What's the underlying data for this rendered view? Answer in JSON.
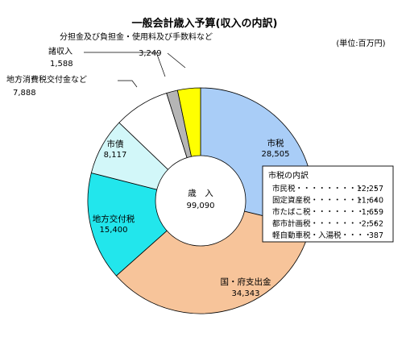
{
  "chart_data": {
    "type": "pie",
    "title": "一般会計歳入予算(収入の内訳)",
    "unit_note": "(単位:百万円)",
    "center": {
      "label": "歳　入",
      "value": "99,090"
    },
    "slices": [
      {
        "name": "市税",
        "value": 28505,
        "display": "28,505",
        "color": "#a9cdf7"
      },
      {
        "name": "国・府支出金",
        "value": 34343,
        "display": "34,343",
        "color": "#f7c49a"
      },
      {
        "name": "地方交付税",
        "value": 15400,
        "display": "15,400",
        "color": "#22e6ec"
      },
      {
        "name": "市債",
        "value": 8117,
        "display": "8,117",
        "color": "#d2f7f9"
      },
      {
        "name": "地方消費税交付金など",
        "value": 7888,
        "display": "7,888",
        "color": "#ffffff"
      },
      {
        "name": "諸収入",
        "value": 1588,
        "display": "1,588",
        "color": "#b5b5b5"
      },
      {
        "name": "分担金及び負担金・使用料及び手数料など",
        "value": 3249,
        "display": "3,249",
        "color": "#ffff00"
      }
    ],
    "inset": {
      "title": "市税の内訳",
      "items": [
        {
          "name": "市民税",
          "leader": "・・・・・・・・・・・",
          "value": "12,257"
        },
        {
          "name": "固定資産税",
          "leader": "・・・・・・・・・",
          "value": "11,640"
        },
        {
          "name": "市たばこ税",
          "leader": "・・・・・・・・・",
          "value": "1,659"
        },
        {
          "name": "都市計画税",
          "leader": "・・・・・・・・・",
          "value": "2,562"
        },
        {
          "name": "軽自動車税・入湯税",
          "leader": "・・・・",
          "value": "387"
        }
      ]
    }
  }
}
